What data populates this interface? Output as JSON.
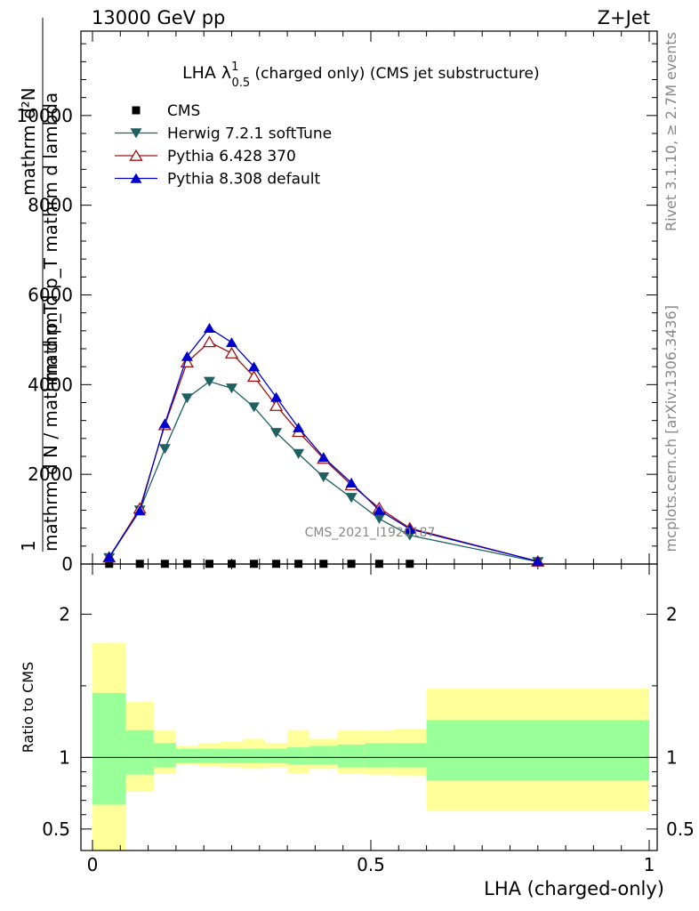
{
  "header": {
    "left": "13000 GeV pp",
    "right": "Z+Jet"
  },
  "side": {
    "rivet": "Rivet 3.1.10, ≥ 2.7M events",
    "mcplots": "mcplots.cern.ch [arXiv:1306.3436]"
  },
  "chart_data": [
    {
      "type": "scatter",
      "title": "LHA λ¹₀.₅ (charged only) (CMS jet substructure)",
      "title_main": "LHA λ",
      "title_sup": "1",
      "title_sub": "0.5",
      "title_rest": " (charged only) (CMS jet substructure)",
      "watermark": "CMS_2021_I1920187",
      "ylabel_num": "mathrm d²N",
      "ylabel_den": "mathrm d p_T mathrm d lambda",
      "ylabel_pre_num": "1",
      "ylabel_pre_den": "mathrm d N / mathrm d p_T",
      "ylim": [
        0,
        12000
      ],
      "yticks": [
        0,
        2000,
        4000,
        6000,
        8000,
        10000
      ],
      "ytick_labels": [
        "0",
        "2000",
        "4000",
        "6000",
        "8000",
        "10000"
      ],
      "x": [
        0.03,
        0.085,
        0.13,
        0.17,
        0.21,
        0.25,
        0.29,
        0.33,
        0.37,
        0.415,
        0.465,
        0.515,
        0.57,
        0.8
      ],
      "series": [
        {
          "name": "CMS",
          "color": "#000000",
          "marker": "square",
          "values": [
            5,
            5,
            5,
            5,
            5,
            5,
            5,
            5,
            5,
            5,
            5,
            5,
            5,
            5
          ]
        },
        {
          "name": "Herwig 7.2.1 softTune",
          "color": "#1f6060",
          "marker": "triangle-down",
          "values": [
            140,
            1200,
            2570,
            3700,
            4070,
            3920,
            3500,
            2930,
            2460,
            1940,
            1480,
            1010,
            640,
            50
          ]
        },
        {
          "name": "Pythia 6.428 370",
          "color": "#a01010",
          "marker": "triangle-up-open",
          "values": [
            150,
            1240,
            3100,
            4500,
            4950,
            4700,
            4180,
            3530,
            2950,
            2350,
            1760,
            1250,
            800,
            60
          ]
        },
        {
          "name": "Pythia 8.308 default",
          "color": "#0000cc",
          "marker": "triangle-up",
          "values": [
            160,
            1190,
            3130,
            4630,
            5260,
            4940,
            4400,
            3720,
            3040,
            2380,
            1810,
            1200,
            780,
            60
          ]
        }
      ]
    },
    {
      "type": "area",
      "ylabel": "Ratio to CMS",
      "xlabel": "LHA (charged-only)",
      "xlim": [
        0,
        1
      ],
      "ylim": [
        0.35,
        2.35
      ],
      "xticks": [
        0,
        0.5,
        1
      ],
      "xtick_labels": [
        "0",
        "0.5",
        "1"
      ],
      "yticks": [
        0.5,
        1,
        2
      ],
      "ytick_labels": [
        "0.5",
        "1",
        "2"
      ],
      "bin_edges": [
        0,
        0.06,
        0.11,
        0.15,
        0.19,
        0.23,
        0.27,
        0.31,
        0.35,
        0.39,
        0.44,
        0.49,
        0.54,
        0.6,
        1.0
      ],
      "stat_band": {
        "color": "#99ff99",
        "lo": [
          0.67,
          0.88,
          0.93,
          0.96,
          0.96,
          0.96,
          0.96,
          0.96,
          0.95,
          0.95,
          0.93,
          0.93,
          0.93,
          0.84
        ],
        "hi": [
          1.45,
          1.19,
          1.1,
          1.06,
          1.06,
          1.06,
          1.06,
          1.06,
          1.07,
          1.08,
          1.09,
          1.1,
          1.1,
          1.26
        ]
      },
      "syst_band": {
        "color": "#ffff99",
        "lo": [
          0.35,
          0.76,
          0.89,
          0.95,
          0.94,
          0.93,
          0.92,
          0.93,
          0.89,
          0.92,
          0.89,
          0.88,
          0.87,
          0.63
        ],
        "hi": [
          1.8,
          1.39,
          1.19,
          1.08,
          1.1,
          1.11,
          1.13,
          1.1,
          1.19,
          1.13,
          1.19,
          1.19,
          1.2,
          1.48
        ]
      },
      "reference_line": 1
    }
  ]
}
